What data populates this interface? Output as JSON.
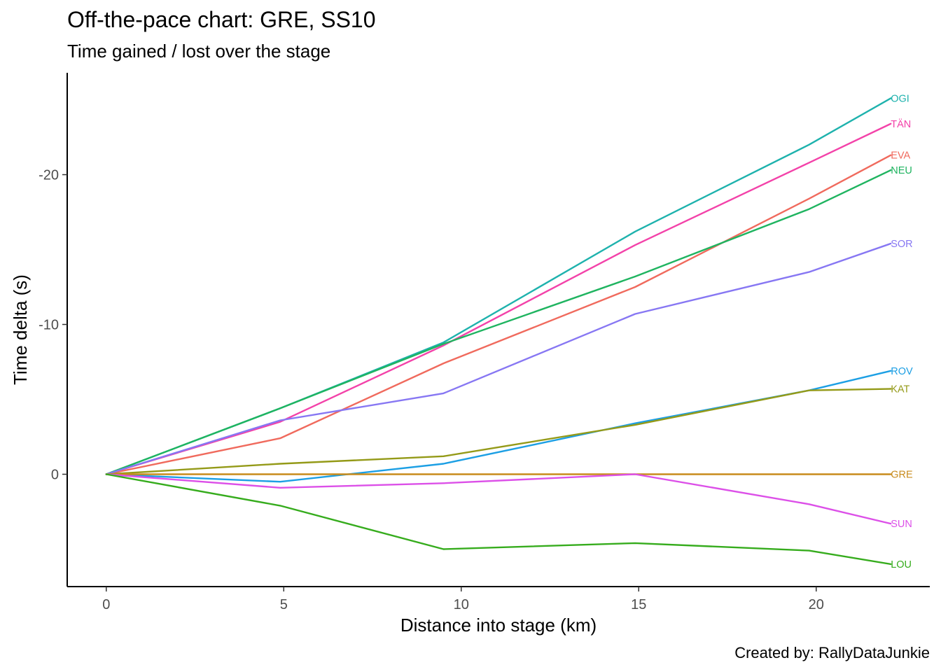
{
  "chart_data": {
    "type": "line",
    "title": "Off-the-pace chart: GRE, SS10",
    "subtitle": "Time gained / lost over the stage",
    "caption": "Created by: RallyDataJunkie",
    "xlabel": "Distance into stage (km)",
    "ylabel": "Time delta (s)",
    "xlim": [
      -1.1,
      23.2
    ],
    "ylim": [
      -26.8,
      7.5
    ],
    "y_reversed": true,
    "xticks": [
      0,
      5,
      10,
      15,
      20
    ],
    "xtick_labels": [
      "0",
      "5",
      "10",
      "15",
      "20"
    ],
    "yticks": [
      -20,
      -10,
      0
    ],
    "ytick_labels": [
      "-20",
      "-10",
      "0"
    ],
    "grid": false,
    "legend": "none (series labelled at line ends)",
    "series": [
      {
        "name": "OGI",
        "color": "#1eb2ad",
        "x": [
          0,
          4.9,
          9.5,
          14.9,
          19.8,
          22.1
        ],
        "y": [
          0,
          -4.4,
          -8.8,
          -16.2,
          -22.0,
          -25.1
        ]
      },
      {
        "name": "TÄN",
        "color": "#f342a9",
        "x": [
          0,
          4.9,
          9.5,
          14.9,
          19.8,
          22.1
        ],
        "y": [
          0,
          -3.5,
          -8.6,
          -15.3,
          -20.8,
          -23.4
        ]
      },
      {
        "name": "EVA",
        "color": "#f06a5d",
        "x": [
          0,
          4.9,
          9.5,
          14.9,
          19.8,
          22.1
        ],
        "y": [
          0,
          -2.4,
          -7.4,
          -12.5,
          -18.4,
          -21.3
        ]
      },
      {
        "name": "NEU",
        "color": "#1fb460",
        "x": [
          0,
          4.9,
          9.5,
          14.9,
          19.8,
          22.1
        ],
        "y": [
          0,
          -4.4,
          -8.7,
          -13.2,
          -17.7,
          -20.3
        ]
      },
      {
        "name": "SOR",
        "color": "#8777f3",
        "x": [
          0,
          4.9,
          9.5,
          14.9,
          19.8,
          22.1
        ],
        "y": [
          0,
          -3.6,
          -5.4,
          -10.7,
          -13.5,
          -15.4
        ]
      },
      {
        "name": "ROV",
        "color": "#1c9fe4",
        "x": [
          0,
          4.9,
          9.5,
          14.9,
          19.8,
          22.1
        ],
        "y": [
          0,
          0.5,
          -0.7,
          -3.4,
          -5.6,
          -6.9
        ]
      },
      {
        "name": "KAT",
        "color": "#949a18",
        "x": [
          0,
          4.9,
          9.5,
          14.9,
          19.8,
          22.1
        ],
        "y": [
          0,
          -0.7,
          -1.2,
          -3.3,
          -5.6,
          -5.7
        ]
      },
      {
        "name": "GRE",
        "color": "#c88b1c",
        "x": [
          0,
          4.9,
          9.5,
          14.9,
          19.8,
          22.1
        ],
        "y": [
          0,
          0,
          0,
          0,
          0,
          0
        ]
      },
      {
        "name": "SUN",
        "color": "#dc50e8",
        "x": [
          0,
          4.9,
          9.5,
          14.9,
          19.8,
          22.1
        ],
        "y": [
          0,
          0.9,
          0.6,
          0,
          2.0,
          3.3
        ]
      },
      {
        "name": "LOU",
        "color": "#36ac1d",
        "x": [
          0,
          4.9,
          9.5,
          14.9,
          19.8,
          22.1
        ],
        "y": [
          0,
          2.1,
          5.0,
          4.6,
          5.1,
          6.0
        ]
      }
    ]
  }
}
